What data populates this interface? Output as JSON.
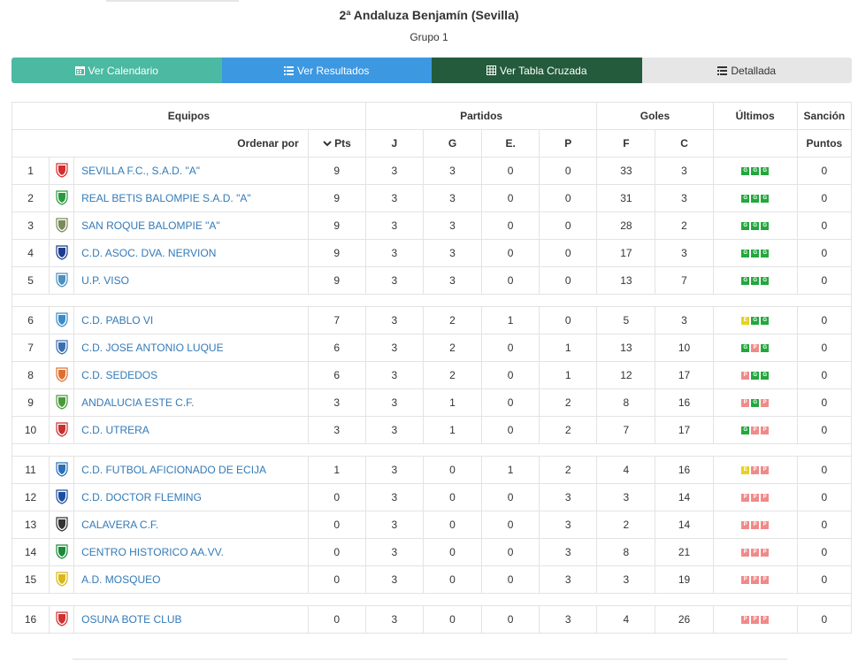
{
  "header": {
    "title": "2ª Andaluza Benjamín (Sevilla)",
    "subtitle": "Grupo 1"
  },
  "tabs": [
    {
      "label": "Ver Calendario",
      "icon": "calendar-icon"
    },
    {
      "label": "Ver Resultados",
      "icon": "list-icon"
    },
    {
      "label": "Ver Tabla Cruzada",
      "icon": "grid-icon"
    },
    {
      "label": "Detallada",
      "icon": "list-detail-icon"
    }
  ],
  "table": {
    "group_headers": {
      "equipos": "Equipos",
      "partidos": "Partidos",
      "goles": "Goles",
      "ultimos": "Últimos",
      "sancion": "Sanción"
    },
    "sub_headers": {
      "ordenar": "Ordenar por",
      "pts": "Pts",
      "j": "J",
      "g": "G",
      "e": "E.",
      "p": "P",
      "f": "F",
      "c": "C",
      "puntos": "Puntos"
    },
    "rows": [
      {
        "pos": "1",
        "name": "SEVILLA F.C., S.A.D. \"A\"",
        "pts": "9",
        "j": "3",
        "g": "3",
        "e": "0",
        "p": "0",
        "f": "33",
        "c": "3",
        "last": [
          "G",
          "G",
          "G"
        ],
        "sancion": "0",
        "crest": "#d62c2c"
      },
      {
        "pos": "2",
        "name": "REAL BETIS BALOMPIE S.A.D. \"A\"",
        "pts": "9",
        "j": "3",
        "g": "3",
        "e": "0",
        "p": "0",
        "f": "31",
        "c": "3",
        "last": [
          "G",
          "G",
          "G"
        ],
        "sancion": "0",
        "crest": "#2a9a3e"
      },
      {
        "pos": "3",
        "name": "SAN ROQUE BALOMPIE \"A\"",
        "pts": "9",
        "j": "3",
        "g": "3",
        "e": "0",
        "p": "0",
        "f": "28",
        "c": "2",
        "last": [
          "G",
          "G",
          "G"
        ],
        "sancion": "0",
        "crest": "#7a8a5a"
      },
      {
        "pos": "4",
        "name": "C.D. ASOC. DVA. NERVION",
        "pts": "9",
        "j": "3",
        "g": "3",
        "e": "0",
        "p": "0",
        "f": "17",
        "c": "3",
        "last": [
          "G",
          "G",
          "G"
        ],
        "sancion": "0",
        "crest": "#1d3c8c"
      },
      {
        "pos": "5",
        "name": "U.P. VISO",
        "pts": "9",
        "j": "3",
        "g": "3",
        "e": "0",
        "p": "0",
        "f": "13",
        "c": "7",
        "last": [
          "G",
          "G",
          "G"
        ],
        "sancion": "0",
        "crest": "#4a90c0"
      },
      {
        "gap": true
      },
      {
        "pos": "6",
        "name": "C.D. PABLO VI",
        "pts": "7",
        "j": "3",
        "g": "2",
        "e": "1",
        "p": "0",
        "f": "5",
        "c": "3",
        "last": [
          "E",
          "G",
          "G"
        ],
        "sancion": "0",
        "crest": "#3a8bc8"
      },
      {
        "pos": "7",
        "name": "C.D. JOSE ANTONIO LUQUE",
        "pts": "6",
        "j": "3",
        "g": "2",
        "e": "0",
        "p": "1",
        "f": "13",
        "c": "10",
        "last": [
          "G",
          "P",
          "G"
        ],
        "sancion": "0",
        "crest": "#3a6fb0"
      },
      {
        "pos": "8",
        "name": "C.D. SEDEDOS",
        "pts": "6",
        "j": "3",
        "g": "2",
        "e": "0",
        "p": "1",
        "f": "12",
        "c": "17",
        "last": [
          "P",
          "G",
          "G"
        ],
        "sancion": "0",
        "crest": "#e07030"
      },
      {
        "pos": "9",
        "name": "ANDALUCIA ESTE C.F.",
        "pts": "3",
        "j": "3",
        "g": "1",
        "e": "0",
        "p": "2",
        "f": "8",
        "c": "16",
        "last": [
          "P",
          "G",
          "P"
        ],
        "sancion": "0",
        "crest": "#4a9a3a"
      },
      {
        "pos": "10",
        "name": "C.D. UTRERA",
        "pts": "3",
        "j": "3",
        "g": "1",
        "e": "0",
        "p": "2",
        "f": "7",
        "c": "17",
        "last": [
          "G",
          "P",
          "P"
        ],
        "sancion": "0",
        "crest": "#c83030"
      },
      {
        "gap": true
      },
      {
        "pos": "11",
        "name": "C.D. FUTBOL AFICIONADO DE ECIJA",
        "pts": "1",
        "j": "3",
        "g": "0",
        "e": "1",
        "p": "2",
        "f": "4",
        "c": "16",
        "last": [
          "E",
          "P",
          "P"
        ],
        "sancion": "0",
        "crest": "#2a6fb8"
      },
      {
        "pos": "12",
        "name": "C.D. DOCTOR FLEMING",
        "pts": "0",
        "j": "3",
        "g": "0",
        "e": "0",
        "p": "3",
        "f": "3",
        "c": "14",
        "last": [
          "P",
          "P",
          "P"
        ],
        "sancion": "0",
        "crest": "#1d4ea0"
      },
      {
        "pos": "13",
        "name": "CALAVERA C.F.",
        "pts": "0",
        "j": "3",
        "g": "0",
        "e": "0",
        "p": "3",
        "f": "2",
        "c": "14",
        "last": [
          "P",
          "P",
          "P"
        ],
        "sancion": "0",
        "crest": "#333333"
      },
      {
        "pos": "14",
        "name": "CENTRO HISTORICO AA.VV.",
        "pts": "0",
        "j": "3",
        "g": "0",
        "e": "0",
        "p": "3",
        "f": "8",
        "c": "21",
        "last": [
          "P",
          "P",
          "P"
        ],
        "sancion": "0",
        "crest": "#1a8a3a"
      },
      {
        "pos": "15",
        "name": "A.D. MOSQUEO",
        "pts": "0",
        "j": "3",
        "g": "0",
        "e": "0",
        "p": "3",
        "f": "3",
        "c": "19",
        "last": [
          "P",
          "P",
          "P"
        ],
        "sancion": "0",
        "crest": "#d8b818"
      },
      {
        "gap": true
      },
      {
        "pos": "16",
        "name": "OSUNA BOTE CLUB",
        "pts": "0",
        "j": "3",
        "g": "0",
        "e": "0",
        "p": "3",
        "f": "4",
        "c": "26",
        "last": [
          "P",
          "P",
          "P"
        ],
        "sancion": "0",
        "crest": "#d03030"
      }
    ]
  },
  "colors": {
    "tab1": "#4cb9a2",
    "tab2": "#3d98e2",
    "tab3": "#245b3c",
    "tab4": "#e6e6e6",
    "win": "#22a83d",
    "draw": "#e8d21a",
    "loss": "#f08a8a",
    "link": "#337ab7"
  }
}
